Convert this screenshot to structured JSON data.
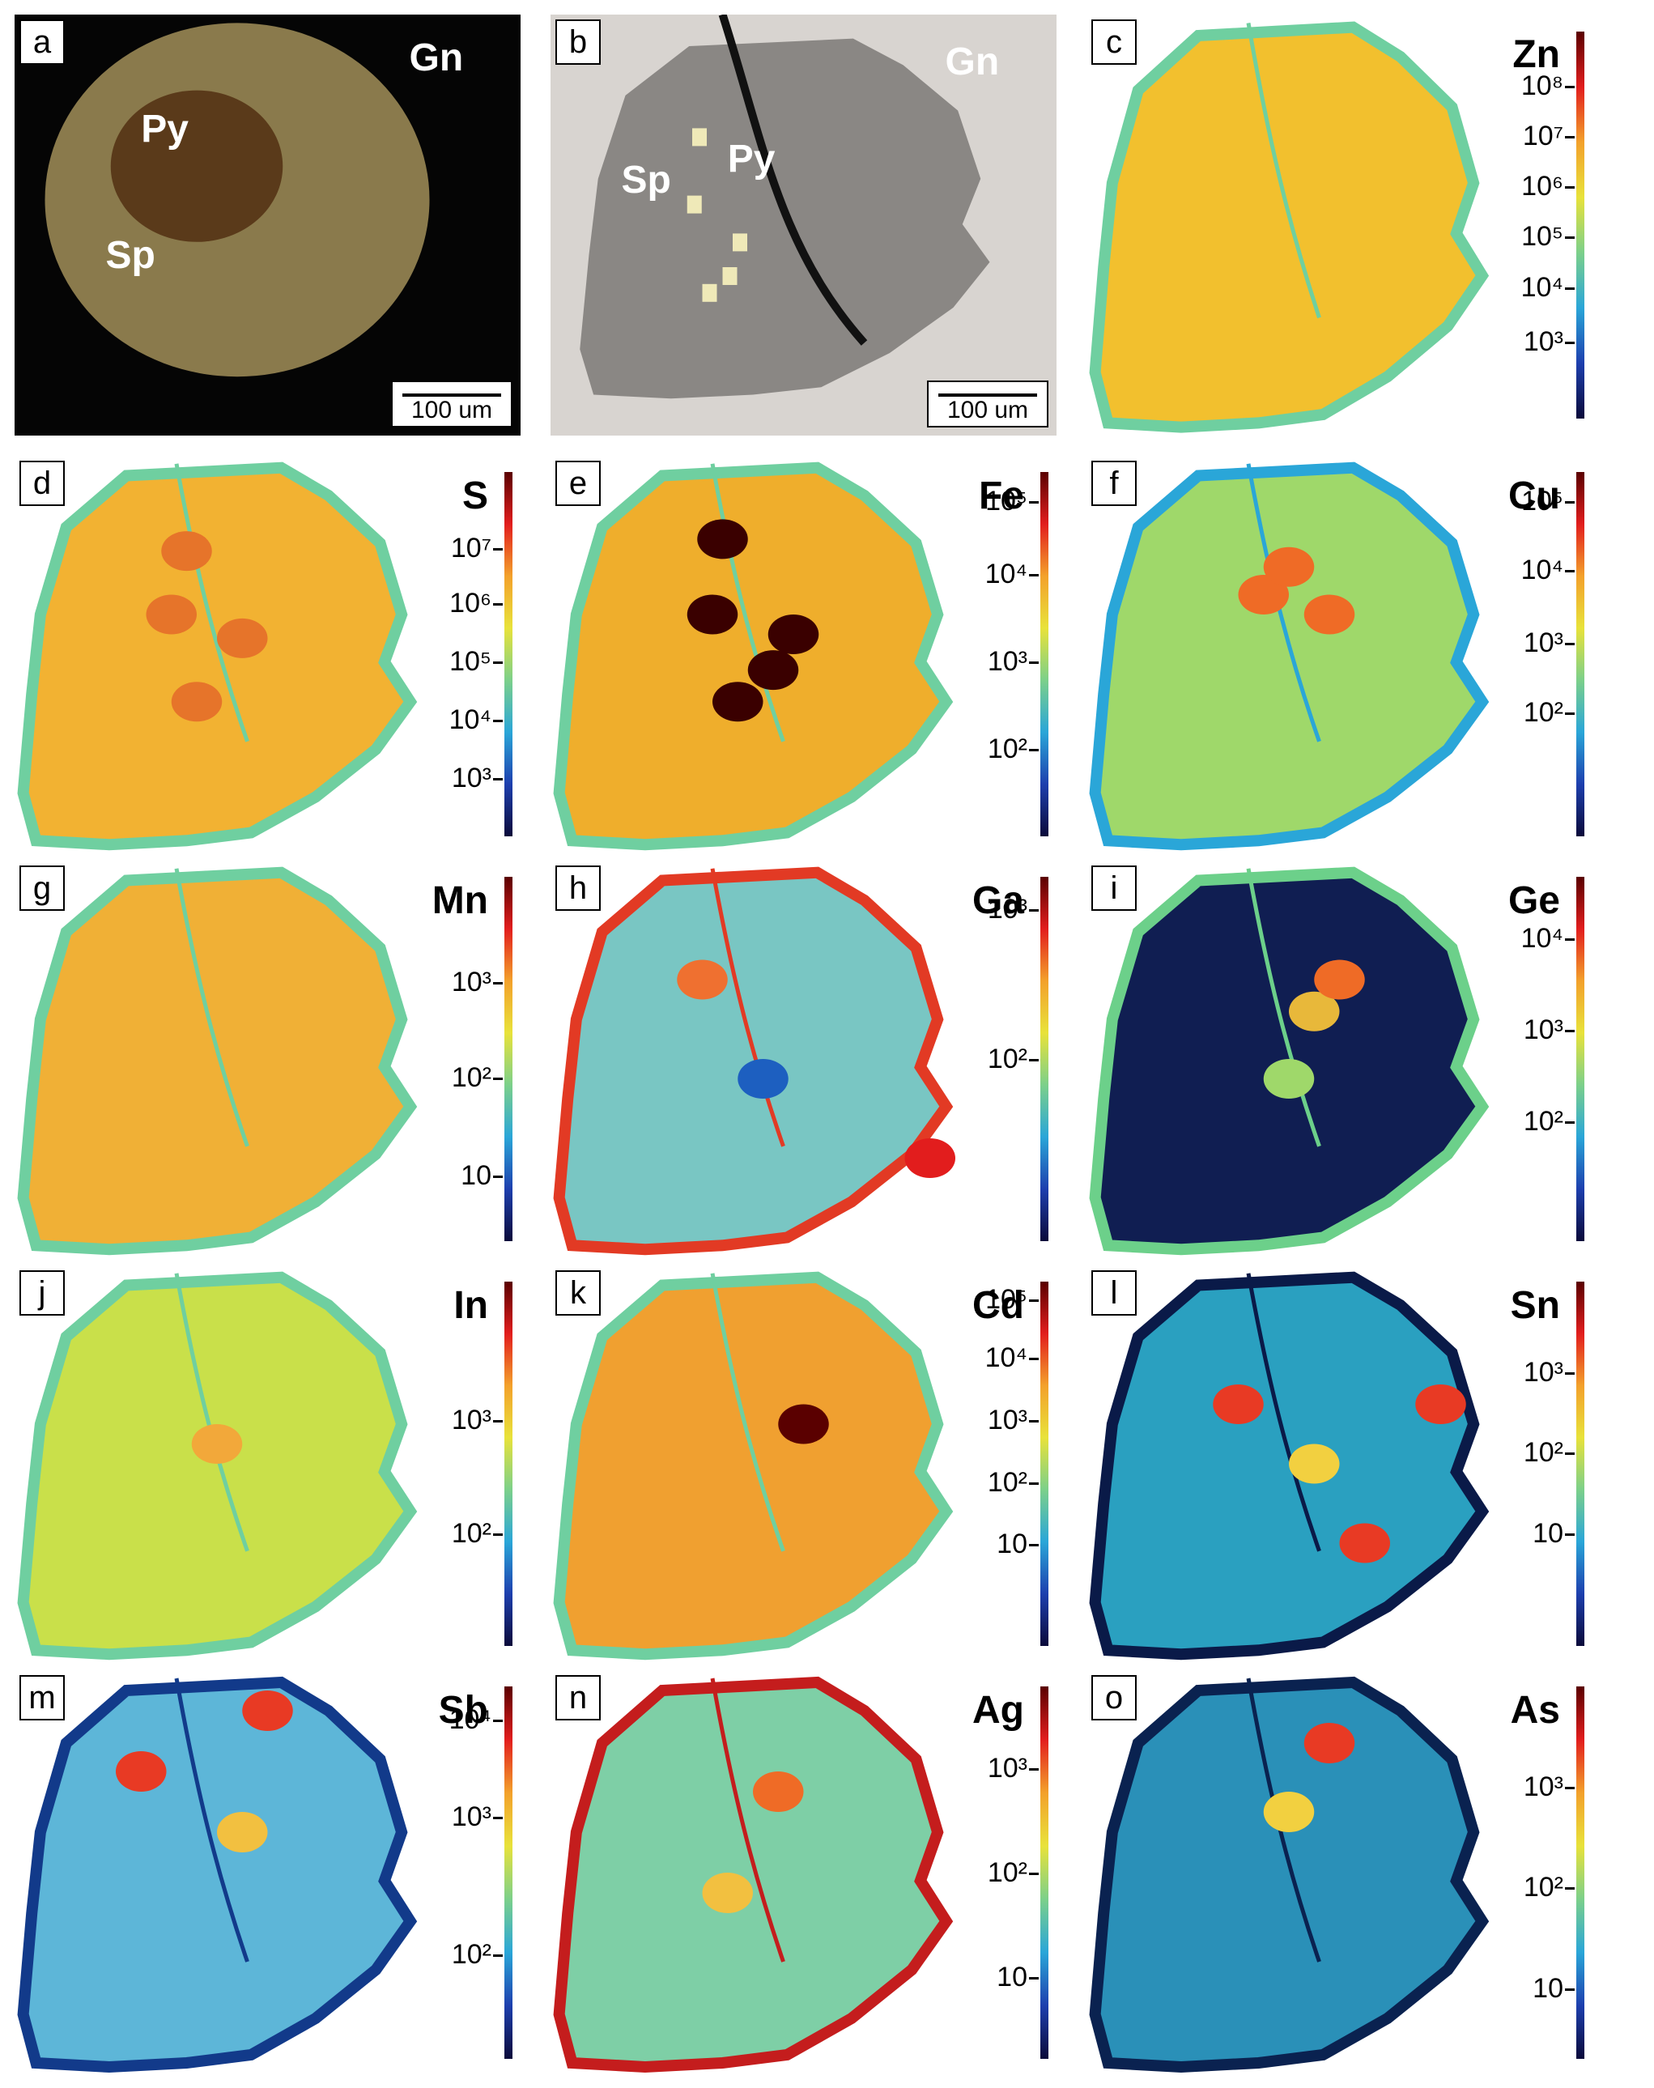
{
  "colors": {
    "background": "#ffffff",
    "colorbar_low": "#0a0a3a",
    "colorbar_mid": "#e8e23a",
    "colorbar_high": "#5a0000"
  },
  "panels": [
    {
      "letter": "a",
      "kind": "photo",
      "labels": [
        "Gn",
        "Py",
        "Sp"
      ],
      "scale_bar": "100 um"
    },
    {
      "letter": "b",
      "kind": "reflected-light",
      "labels": [
        "Gn",
        "Sp",
        "Py"
      ],
      "scale_bar": "100 um"
    },
    {
      "letter": "c",
      "kind": "map",
      "element": "Zn",
      "ticks": [
        "10⁸",
        "10⁷",
        "10⁶",
        "10⁵",
        "10⁴",
        "10³"
      ]
    },
    {
      "letter": "d",
      "kind": "map",
      "element": "S",
      "ticks": [
        "10⁷",
        "10⁶",
        "10⁵",
        "10⁴",
        "10³"
      ]
    },
    {
      "letter": "e",
      "kind": "map",
      "element": "Fe",
      "ticks": [
        "10⁵",
        "10⁴",
        "10³",
        "10²"
      ]
    },
    {
      "letter": "f",
      "kind": "map",
      "element": "Cu",
      "ticks": [
        "10⁵",
        "10⁴",
        "10³",
        "10²"
      ]
    },
    {
      "letter": "g",
      "kind": "map",
      "element": "Mn",
      "ticks": [
        "10³",
        "10²",
        "10"
      ]
    },
    {
      "letter": "h",
      "kind": "map",
      "element": "Ga",
      "ticks": [
        "10³",
        "10²"
      ]
    },
    {
      "letter": "i",
      "kind": "map",
      "element": "Ge",
      "ticks": [
        "10⁴",
        "10³",
        "10²"
      ]
    },
    {
      "letter": "j",
      "kind": "map",
      "element": "In",
      "ticks": [
        "10³",
        "10²"
      ]
    },
    {
      "letter": "k",
      "kind": "map",
      "element": "Cd",
      "ticks": [
        "10⁵",
        "10⁴",
        "10³",
        "10²",
        "10"
      ]
    },
    {
      "letter": "l",
      "kind": "map",
      "element": "Sn",
      "ticks": [
        "10³",
        "10²",
        "10"
      ]
    },
    {
      "letter": "m",
      "kind": "map",
      "element": "Sb",
      "ticks": [
        "10⁴",
        "10³",
        "10²"
      ]
    },
    {
      "letter": "n",
      "kind": "map",
      "element": "Ag",
      "ticks": [
        "10³",
        "10²",
        "10"
      ]
    },
    {
      "letter": "o",
      "kind": "map",
      "element": "As",
      "ticks": [
        "10³",
        "10²",
        "10"
      ]
    }
  ]
}
